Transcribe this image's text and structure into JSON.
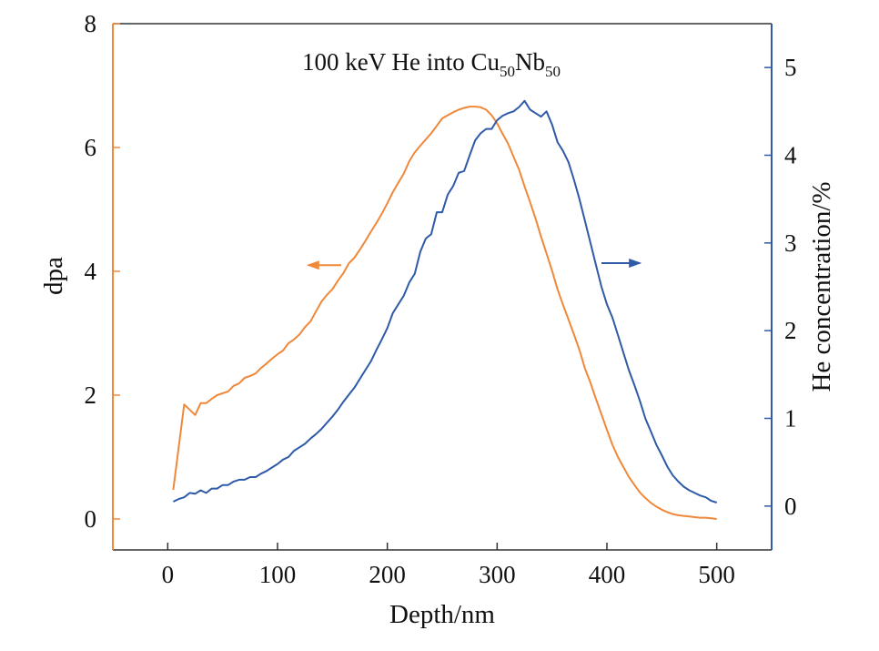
{
  "chart_data": {
    "type": "line",
    "title": {
      "prefix": "100 keV He into Cu",
      "sub1": "50",
      "mid": "Nb",
      "sub2": "50"
    },
    "xlabel": "Depth/nm",
    "ylabel_left": "dpa",
    "ylabel_right": "He concentration/%",
    "xlim": [
      -50,
      550
    ],
    "ylim_left": [
      -0.5,
      8.0
    ],
    "ylim_right": [
      -0.5,
      5.5
    ],
    "x_ticks": [
      0,
      100,
      200,
      300,
      400,
      500
    ],
    "x_tick_labels": [
      "0",
      "100",
      "200",
      "300",
      "400",
      "500"
    ],
    "y_left_ticks": [
      0,
      2,
      4,
      6,
      8
    ],
    "y_left_tick_labels": [
      "0",
      "2",
      "4",
      "6",
      "8"
    ],
    "y_right_ticks": [
      0,
      1,
      2,
      3,
      4,
      5
    ],
    "y_right_tick_labels": [
      "0",
      "1",
      "2",
      "3",
      "4",
      "5"
    ],
    "grid": false,
    "legend": "none",
    "left_axis_color": "#f0883a",
    "right_axis_color": "#2e5aa8",
    "series": [
      {
        "axis": "left",
        "color": "#f0883a",
        "x": [
          5,
          15,
          25,
          30,
          35,
          40,
          45,
          55,
          60,
          65,
          70,
          75,
          80,
          85,
          90,
          95,
          100,
          105,
          110,
          115,
          120,
          125,
          130,
          135,
          140,
          145,
          150,
          155,
          160,
          165,
          170,
          175,
          180,
          185,
          190,
          195,
          200,
          205,
          210,
          215,
          220,
          225,
          230,
          235,
          240,
          245,
          250,
          255,
          260,
          265,
          270,
          275,
          280,
          285,
          290,
          295,
          300,
          305,
          310,
          315,
          320,
          325,
          330,
          335,
          340,
          345,
          350,
          355,
          360,
          365,
          370,
          375,
          380,
          385,
          390,
          395,
          400,
          405,
          410,
          415,
          420,
          425,
          430,
          435,
          440,
          445,
          450,
          455,
          460,
          465,
          470,
          475,
          480,
          485,
          490,
          495,
          500
        ],
        "y": [
          0.47,
          1.85,
          1.68,
          1.87,
          1.87,
          1.94,
          2.0,
          2.06,
          2.15,
          2.19,
          2.28,
          2.31,
          2.35,
          2.44,
          2.51,
          2.59,
          2.66,
          2.72,
          2.84,
          2.9,
          2.98,
          3.1,
          3.19,
          3.35,
          3.51,
          3.62,
          3.71,
          3.85,
          3.97,
          4.13,
          4.22,
          4.35,
          4.49,
          4.64,
          4.78,
          4.93,
          5.1,
          5.28,
          5.43,
          5.58,
          5.78,
          5.92,
          6.03,
          6.13,
          6.23,
          6.35,
          6.47,
          6.52,
          6.57,
          6.61,
          6.64,
          6.66,
          6.66,
          6.65,
          6.61,
          6.52,
          6.39,
          6.22,
          6.06,
          5.85,
          5.64,
          5.37,
          5.12,
          4.85,
          4.56,
          4.29,
          4.01,
          3.71,
          3.46,
          3.22,
          2.98,
          2.73,
          2.43,
          2.2,
          1.94,
          1.69,
          1.44,
          1.2,
          1.0,
          0.84,
          0.68,
          0.55,
          0.43,
          0.34,
          0.26,
          0.2,
          0.15,
          0.11,
          0.08,
          0.06,
          0.05,
          0.04,
          0.03,
          0.02,
          0.02,
          0.01,
          0.0
        ]
      },
      {
        "axis": "right",
        "color": "#2e5aa8",
        "x": [
          5,
          10,
          15,
          20,
          25,
          30,
          35,
          40,
          45,
          50,
          55,
          60,
          65,
          70,
          75,
          80,
          85,
          90,
          95,
          100,
          105,
          110,
          115,
          120,
          125,
          130,
          135,
          140,
          145,
          150,
          155,
          160,
          165,
          170,
          175,
          180,
          185,
          190,
          195,
          200,
          205,
          210,
          215,
          220,
          225,
          230,
          235,
          240,
          245,
          250,
          255,
          260,
          265,
          270,
          275,
          280,
          285,
          290,
          295,
          300,
          305,
          310,
          315,
          320,
          325,
          330,
          335,
          340,
          345,
          350,
          355,
          360,
          365,
          370,
          375,
          380,
          385,
          390,
          395,
          400,
          405,
          410,
          415,
          420,
          425,
          430,
          435,
          440,
          445,
          450,
          455,
          460,
          465,
          470,
          475,
          480,
          485,
          490,
          495,
          500
        ],
        "y": [
          0.05,
          0.08,
          0.1,
          0.15,
          0.14,
          0.18,
          0.15,
          0.2,
          0.2,
          0.24,
          0.24,
          0.28,
          0.3,
          0.3,
          0.33,
          0.33,
          0.37,
          0.4,
          0.44,
          0.48,
          0.53,
          0.56,
          0.63,
          0.67,
          0.71,
          0.77,
          0.82,
          0.88,
          0.95,
          1.02,
          1.1,
          1.19,
          1.27,
          1.35,
          1.45,
          1.55,
          1.65,
          1.78,
          1.9,
          2.03,
          2.2,
          2.3,
          2.4,
          2.55,
          2.65,
          2.9,
          3.05,
          3.1,
          3.35,
          3.35,
          3.55,
          3.65,
          3.8,
          3.82,
          4.0,
          4.17,
          4.25,
          4.3,
          4.3,
          4.4,
          4.45,
          4.48,
          4.5,
          4.55,
          4.62,
          4.52,
          4.48,
          4.44,
          4.5,
          4.35,
          4.15,
          4.05,
          3.92,
          3.72,
          3.5,
          3.25,
          3.0,
          2.75,
          2.5,
          2.3,
          2.15,
          1.95,
          1.75,
          1.55,
          1.38,
          1.2,
          1.0,
          0.85,
          0.7,
          0.58,
          0.45,
          0.35,
          0.28,
          0.22,
          0.18,
          0.15,
          0.12,
          0.1,
          0.06,
          0.04
        ]
      }
    ],
    "annotations": [
      {
        "type": "arrow",
        "direction": "left",
        "color": "#f0883a",
        "x_from": 158,
        "x_to": 128,
        "y": 4.1,
        "axis": "left"
      },
      {
        "type": "arrow",
        "direction": "right",
        "color": "#2e5aa8",
        "x_from": 395,
        "x_to": 430,
        "y": 2.77,
        "axis": "right"
      }
    ]
  }
}
